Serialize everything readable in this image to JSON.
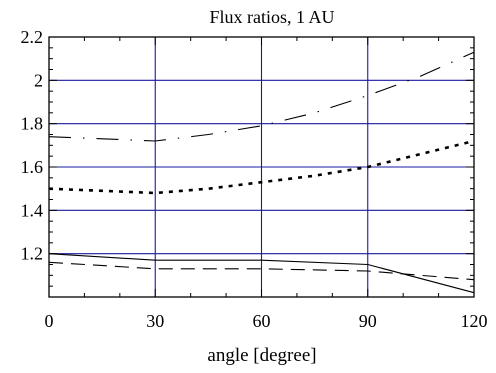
{
  "chart_data": {
    "type": "line",
    "title": "Flux ratios, 1 AU",
    "xlabel": "angle [degree]",
    "ylabel": "",
    "xlim": [
      0,
      120
    ],
    "ylim": [
      1.0,
      2.2
    ],
    "grid": true,
    "grid_color": "#1a1aa0",
    "x_ticks": [
      0,
      30,
      60,
      90,
      120
    ],
    "x_tick_labels": [
      "0",
      "30",
      "60",
      "90",
      "120"
    ],
    "y_ticks": [
      1.2,
      1.4,
      1.6,
      1.8,
      2.0,
      2.2
    ],
    "y_tick_labels": [
      "1.2",
      "1.4",
      "1.6",
      "1.8",
      "2",
      "2.2"
    ],
    "series": [
      {
        "style": "long-dash-dot",
        "x": [
          0,
          15,
          30,
          45,
          60,
          75,
          90,
          105,
          120
        ],
        "y": [
          1.74,
          1.73,
          1.72,
          1.75,
          1.79,
          1.85,
          1.93,
          2.02,
          2.13
        ]
      },
      {
        "style": "dotted",
        "x": [
          0,
          15,
          30,
          45,
          60,
          75,
          90,
          105,
          120
        ],
        "y": [
          1.5,
          1.49,
          1.48,
          1.5,
          1.53,
          1.56,
          1.6,
          1.66,
          1.72
        ]
      },
      {
        "style": "solid",
        "x": [
          0,
          30,
          60,
          90,
          120
        ],
        "y": [
          1.2,
          1.17,
          1.17,
          1.15,
          1.02
        ]
      },
      {
        "style": "dashed",
        "x": [
          0,
          30,
          60,
          90,
          120
        ],
        "y": [
          1.16,
          1.13,
          1.13,
          1.12,
          1.08
        ]
      }
    ]
  }
}
